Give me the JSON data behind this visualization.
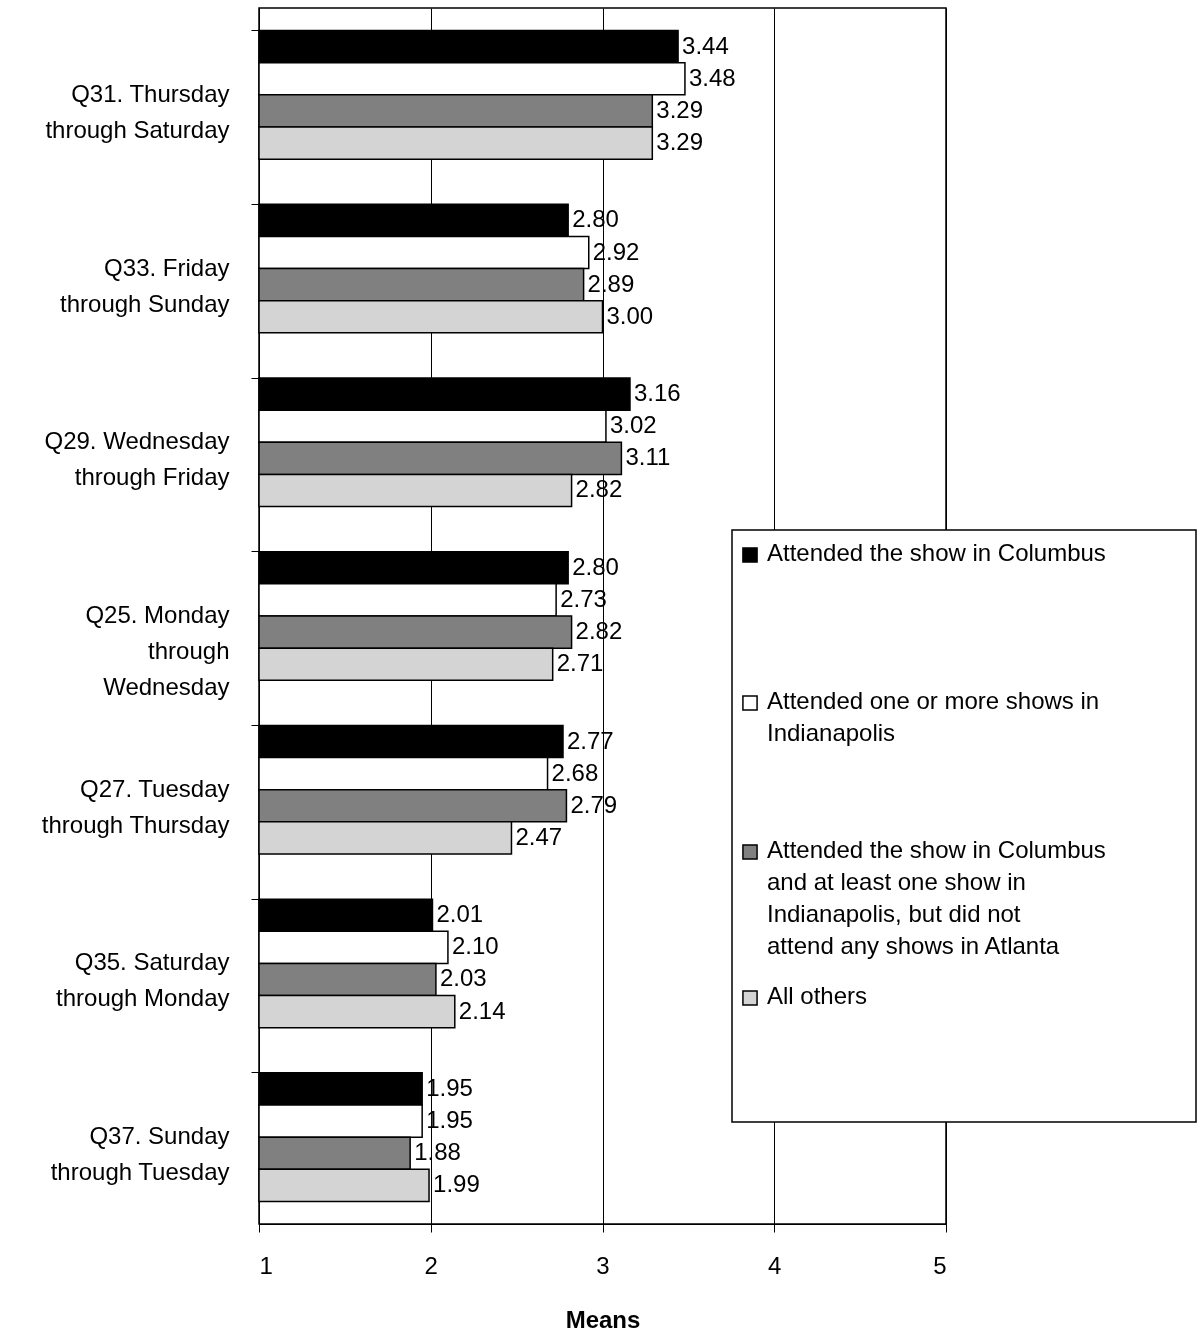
{
  "chart_data": {
    "type": "bar",
    "orientation": "horizontal",
    "xlabel": "Means",
    "categories": [
      "Q31. Thursday through Saturday",
      "Q33. Friday through Sunday",
      "Q29. Wednesday through Friday",
      "Q25. Monday through Wednesday",
      "Q27. Tuesday through Thursday",
      "Q35. Saturday through Monday",
      "Q37. Sunday through Tuesday"
    ],
    "series": [
      {
        "name": "Attended the show in Columbus",
        "color": "#000000",
        "values": [
          3.44,
          2.8,
          3.16,
          2.8,
          2.77,
          2.01,
          1.95
        ]
      },
      {
        "name": "Attended one or more shows in Indianapolis",
        "color": "#ffffff",
        "values": [
          3.48,
          2.92,
          3.02,
          2.73,
          2.68,
          2.1,
          1.95
        ]
      },
      {
        "name": "Attended the show in Columbus and at least one show in Indianapolis, but did not attend any shows in Atlanta",
        "color": "#808080",
        "values": [
          3.29,
          2.89,
          3.11,
          2.82,
          2.79,
          2.03,
          1.88
        ]
      },
      {
        "name": "All others",
        "color": "#d4d4d4",
        "values": [
          3.29,
          3.0,
          2.82,
          2.71,
          2.47,
          2.14,
          1.99
        ]
      }
    ],
    "xlim": [
      1,
      5
    ],
    "xticks": [
      1,
      2,
      3,
      4,
      5
    ],
    "grid": "x",
    "legend": "right",
    "value_labels": [
      [
        "3.44",
        "2.80",
        "3.16",
        "2.80",
        "2.77",
        "2.01",
        "1.95"
      ],
      [
        "3.48",
        "2.92",
        "3.02",
        "2.73",
        "2.68",
        "2.10",
        "1.95"
      ],
      [
        "3.29",
        "2.89",
        "3.11",
        "2.82",
        "2.79",
        "2.03",
        "1.88"
      ],
      [
        "3.29",
        "3.00",
        "2.82",
        "2.71",
        "2.47",
        "2.14",
        "1.99"
      ]
    ]
  }
}
